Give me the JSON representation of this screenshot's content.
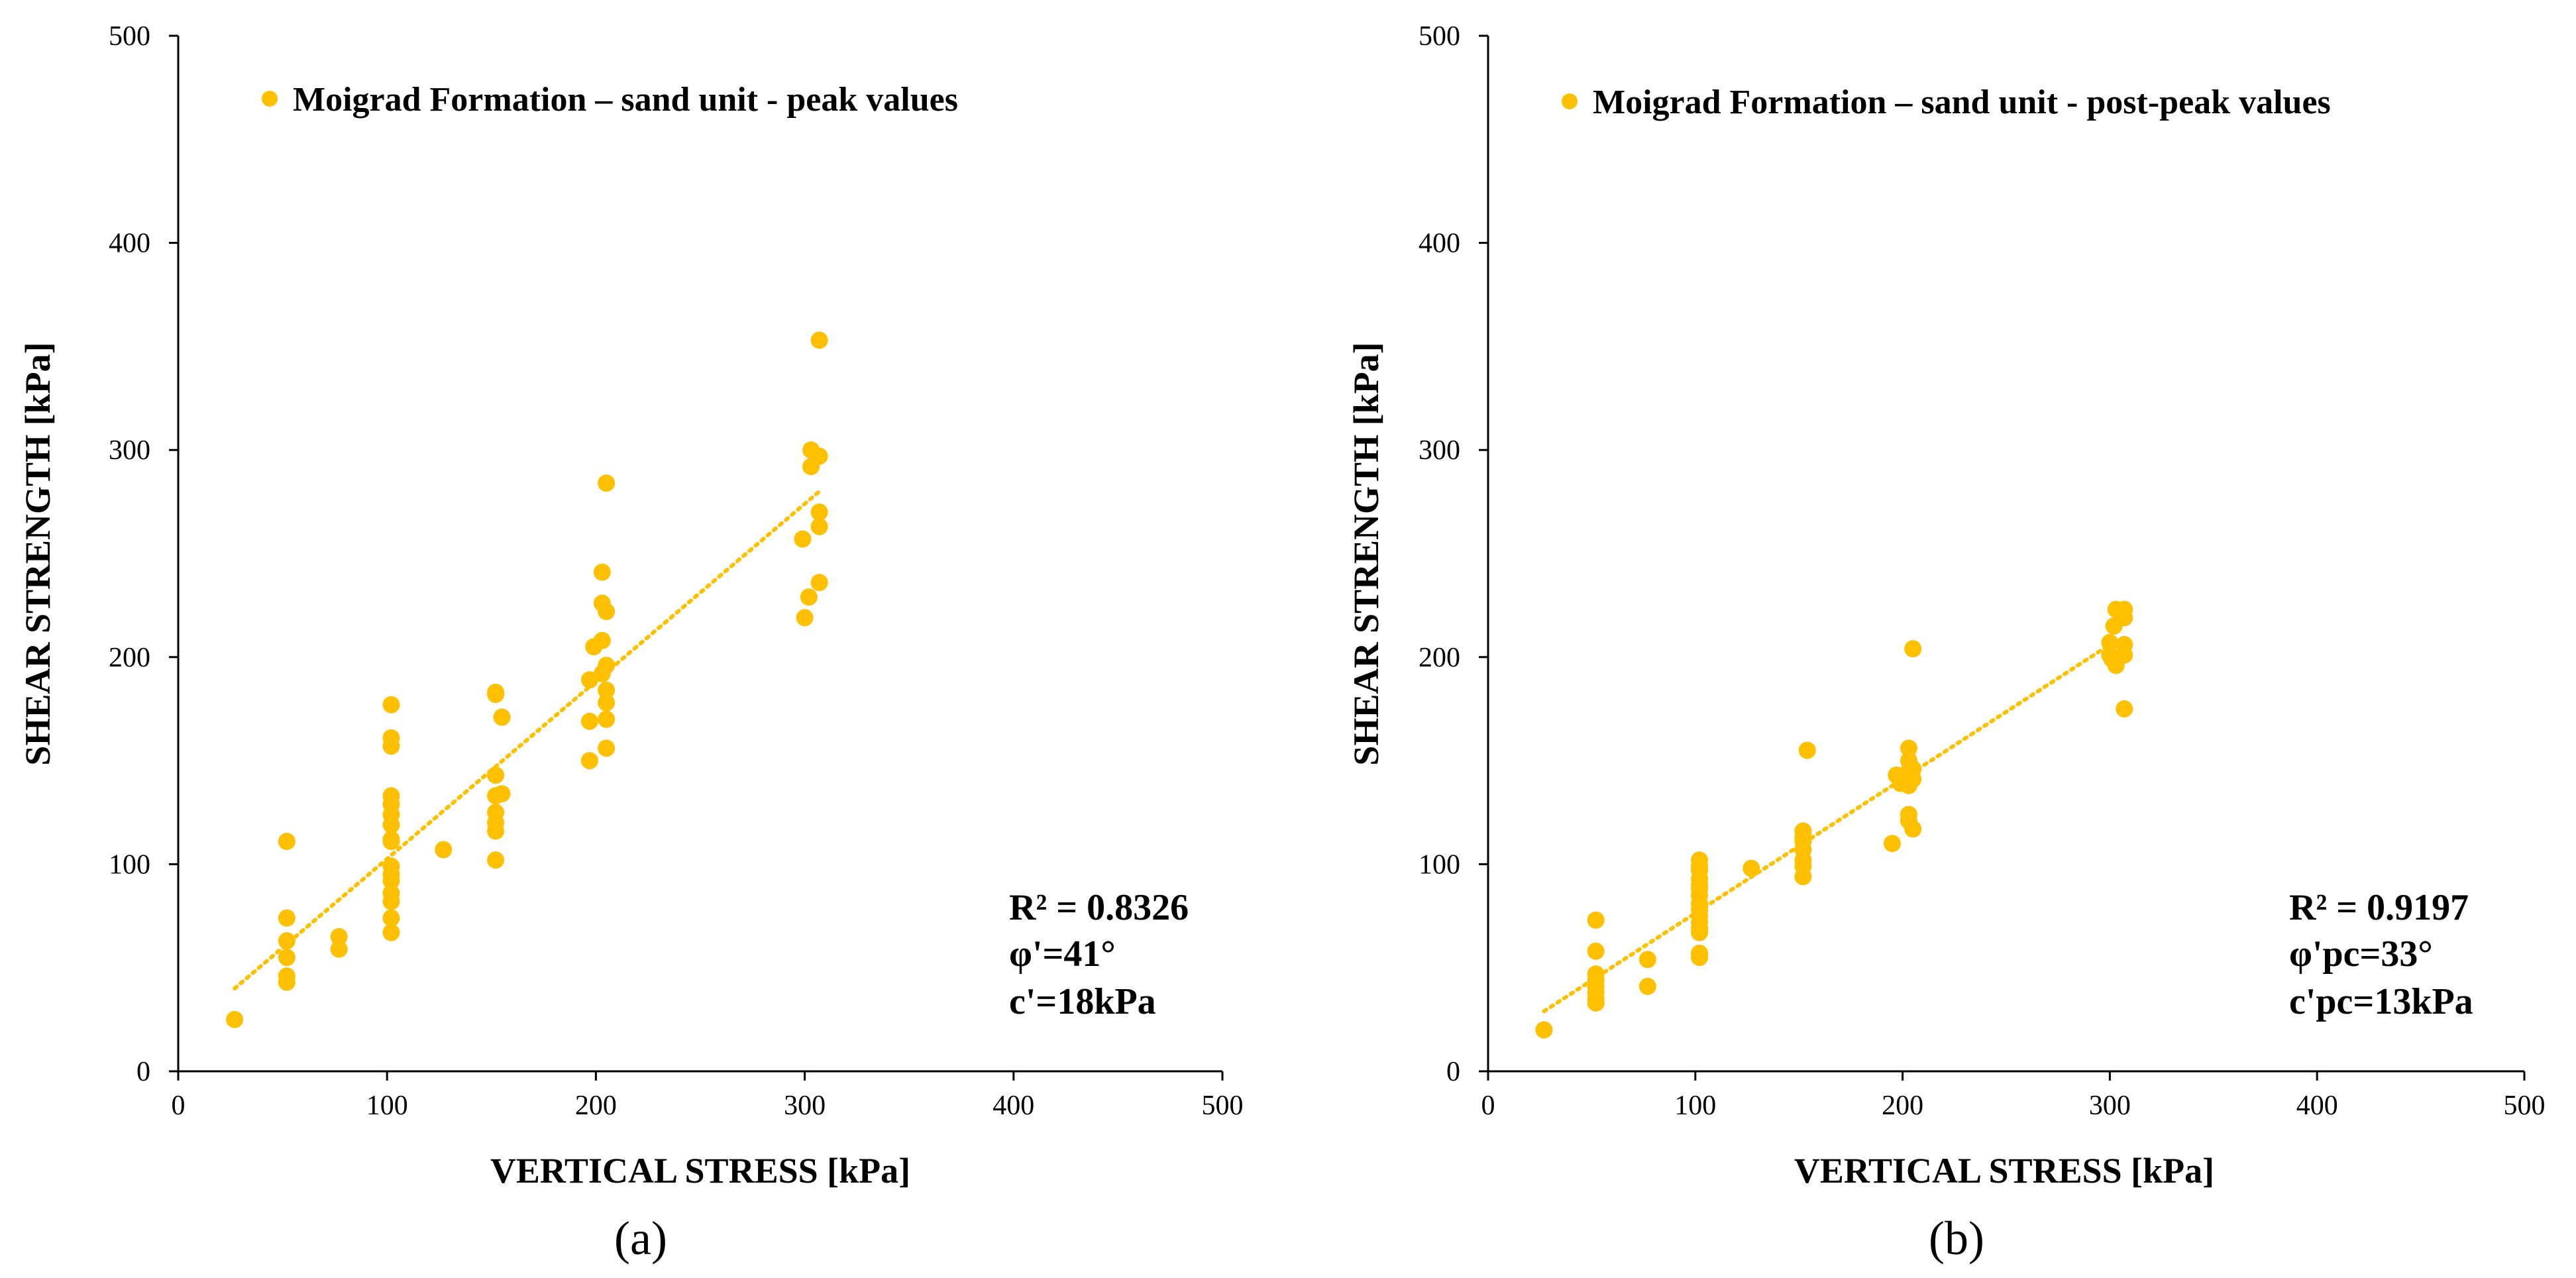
{
  "chart_data": [
    {
      "type": "scatter",
      "panel_label": "(a)",
      "xlabel": "VERTICAL STRESS [kPa]",
      "ylabel": "SHEAR STRENGTH [kPa]",
      "xlim": [
        0,
        500
      ],
      "ylim": [
        0,
        500
      ],
      "x_ticks": [
        0,
        100,
        200,
        300,
        400,
        500
      ],
      "y_ticks": [
        0,
        100,
        200,
        300,
        400,
        500
      ],
      "grid": false,
      "legend_position": "top-left",
      "color": "#FFC000",
      "series": [
        {
          "name": "Moigrad Formation – sand unit - peak values",
          "points": [
            [
              27,
              25
            ],
            [
              52,
              111
            ],
            [
              52,
              74
            ],
            [
              52,
              63
            ],
            [
              52,
              55
            ],
            [
              52,
              46
            ],
            [
              52,
              43
            ],
            [
              77,
              65
            ],
            [
              77,
              59
            ],
            [
              102,
              177
            ],
            [
              102,
              161
            ],
            [
              102,
              157
            ],
            [
              102,
              133
            ],
            [
              102,
              129
            ],
            [
              102,
              124
            ],
            [
              102,
              119
            ],
            [
              102,
              112
            ],
            [
              102,
              111
            ],
            [
              102,
              99
            ],
            [
              102,
              95
            ],
            [
              102,
              92
            ],
            [
              102,
              86
            ],
            [
              102,
              82
            ],
            [
              102,
              74
            ],
            [
              102,
              67
            ],
            [
              127,
              107
            ],
            [
              152,
              183
            ],
            [
              152,
              182
            ],
            [
              152,
              143
            ],
            [
              152,
              133
            ],
            [
              152,
              125
            ],
            [
              152,
              120
            ],
            [
              152,
              116
            ],
            [
              152,
              102
            ],
            [
              155,
              171
            ],
            [
              155,
              134
            ],
            [
              197,
              189
            ],
            [
              197,
              169
            ],
            [
              197,
              150
            ],
            [
              199,
              205
            ],
            [
              203,
              241
            ],
            [
              203,
              226
            ],
            [
              203,
              208
            ],
            [
              203,
              192
            ],
            [
              205,
              284
            ],
            [
              205,
              222
            ],
            [
              205,
              196
            ],
            [
              205,
              184
            ],
            [
              205,
              178
            ],
            [
              205,
              170
            ],
            [
              205,
              156
            ],
            [
              299,
              257
            ],
            [
              300,
              219
            ],
            [
              302,
              229
            ],
            [
              303,
              300
            ],
            [
              303,
              292
            ],
            [
              307,
              353
            ],
            [
              307,
              297
            ],
            [
              307,
              270
            ],
            [
              307,
              263
            ],
            [
              307,
              236
            ]
          ]
        }
      ],
      "trendline": {
        "style": "dotted",
        "x_from": 27,
        "x_to": 307,
        "y_from": 40,
        "y_to": 280
      },
      "annotations": [
        "R² = 0.8326",
        "φ'=41°",
        "c'=18kPa"
      ]
    },
    {
      "type": "scatter",
      "panel_label": "(b)",
      "xlabel": "VERTICAL STRESS [kPa]",
      "ylabel": "SHEAR STRENGTH [kPa]",
      "xlim": [
        0,
        500
      ],
      "ylim": [
        0,
        500
      ],
      "x_ticks": [
        0,
        100,
        200,
        300,
        400,
        500
      ],
      "y_ticks": [
        0,
        100,
        200,
        300,
        400,
        500
      ],
      "grid": false,
      "legend_position": "top-left",
      "color": "#FFC000",
      "series": [
        {
          "name": "Moigrad Formation – sand unit - post-peak values",
          "points": [
            [
              27,
              20
            ],
            [
              52,
              73
            ],
            [
              52,
              58
            ],
            [
              52,
              47
            ],
            [
              52,
              44
            ],
            [
              52,
              41
            ],
            [
              52,
              38
            ],
            [
              52,
              35
            ],
            [
              52,
              33
            ],
            [
              77,
              54
            ],
            [
              77,
              41
            ],
            [
              102,
              102
            ],
            [
              102,
              99
            ],
            [
              102,
              97
            ],
            [
              102,
              93
            ],
            [
              102,
              90
            ],
            [
              102,
              88
            ],
            [
              102,
              85
            ],
            [
              102,
              81
            ],
            [
              102,
              78
            ],
            [
              102,
              75
            ],
            [
              102,
              72
            ],
            [
              102,
              69
            ],
            [
              102,
              67
            ],
            [
              102,
              57
            ],
            [
              102,
              55
            ],
            [
              127,
              98
            ],
            [
              152,
              116
            ],
            [
              152,
              113
            ],
            [
              152,
              111
            ],
            [
              152,
              107
            ],
            [
              152,
              102
            ],
            [
              152,
              99
            ],
            [
              152,
              94
            ],
            [
              154,
              155
            ],
            [
              195,
              110
            ],
            [
              197,
              143
            ],
            [
              199,
              141
            ],
            [
              199,
              139
            ],
            [
              203,
              156
            ],
            [
              203,
              150
            ],
            [
              203,
              145
            ],
            [
              203,
              141
            ],
            [
              203,
              138
            ],
            [
              203,
              124
            ],
            [
              203,
              121
            ],
            [
              205,
              204
            ],
            [
              205,
              146
            ],
            [
              205,
              141
            ],
            [
              205,
              117
            ],
            [
              300,
              207
            ],
            [
              300,
              201
            ],
            [
              301,
              199
            ],
            [
              302,
              215
            ],
            [
              303,
              223
            ],
            [
              303,
              196
            ],
            [
              307,
              223
            ],
            [
              307,
              219
            ],
            [
              307,
              206
            ],
            [
              307,
              201
            ],
            [
              307,
              175
            ]
          ]
        }
      ],
      "trendline": {
        "style": "dotted",
        "x_from": 27,
        "x_to": 300,
        "y_from": 29,
        "y_to": 206
      },
      "annotations": [
        "R² = 0.9197",
        "φ'pc=33°",
        "c'pc=13kPa"
      ]
    }
  ]
}
